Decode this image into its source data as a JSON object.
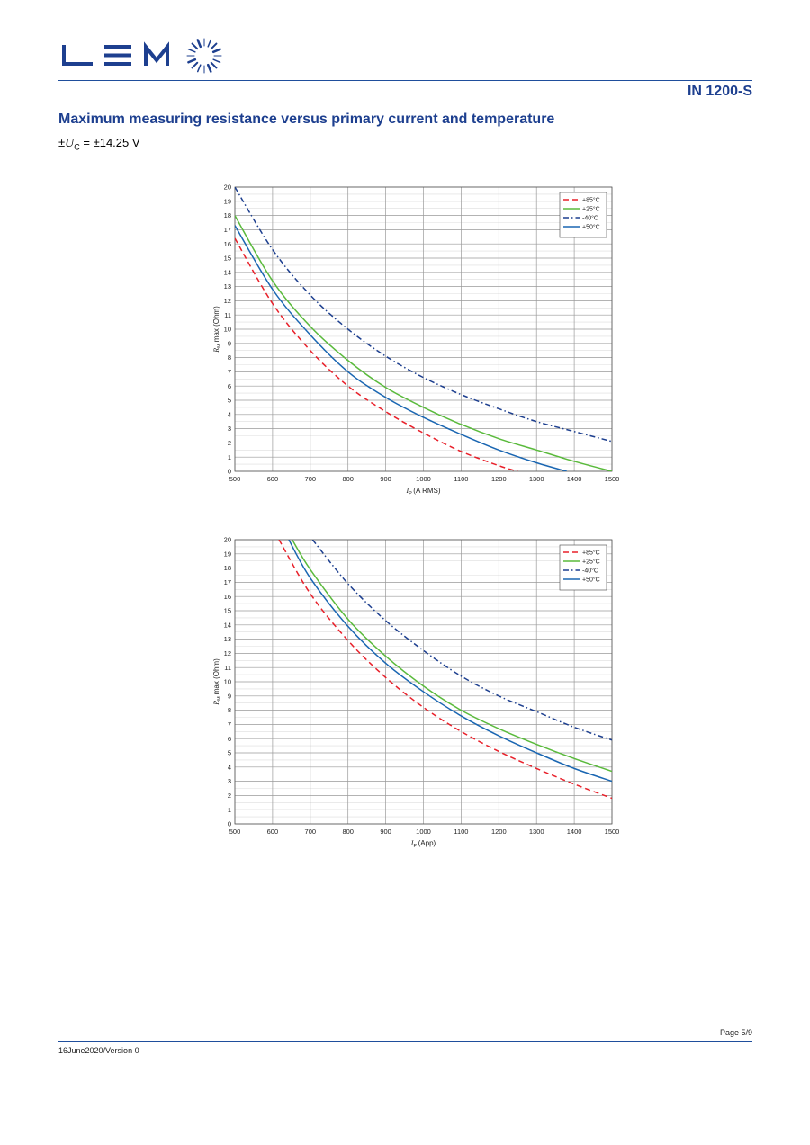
{
  "header": {
    "logo_text": "LEM",
    "product": "IN 1200-S"
  },
  "section": {
    "title": "Maximum measuring resistance versus primary current and temperature",
    "condition_prefix": "±",
    "condition_symbol": "U",
    "condition_subscript": "C",
    "condition_value": " = ±14.25 V"
  },
  "footer": {
    "page": "Page 5/9",
    "version": "16June2020/Version 0"
  },
  "colors": {
    "brand": "#1d3f8f",
    "rule": "#1f4e9c"
  },
  "chart_data": [
    {
      "type": "line",
      "xlabel_symbol": "I",
      "xlabel_sub": "P",
      "xlabel_unit": "(A RMS)",
      "ylabel_symbol": "R",
      "ylabel_sub": "M",
      "ylabel_unit": "max (Ohm)",
      "xlim": [
        500,
        1500
      ],
      "ylim": [
        0,
        20
      ],
      "xticks": [
        500,
        600,
        700,
        800,
        900,
        1000,
        1100,
        1200,
        1300,
        1400,
        1500
      ],
      "yticks": [
        0,
        1,
        2,
        3,
        4,
        5,
        6,
        7,
        8,
        9,
        10,
        11,
        12,
        13,
        14,
        15,
        16,
        17,
        18,
        19,
        20
      ],
      "grid": true,
      "legend_position": "top-right",
      "series": [
        {
          "name": "+85°C",
          "color": "#e8202a",
          "dash": "dashed",
          "x": [
            500,
            600,
            700,
            800,
            900,
            1000,
            1100,
            1200,
            1250
          ],
          "y": [
            16.4,
            11.8,
            8.5,
            6.0,
            4.2,
            2.7,
            1.4,
            0.4,
            0
          ]
        },
        {
          "name": "+25°C",
          "color": "#5aba3c",
          "dash": "solid",
          "x": [
            500,
            600,
            700,
            800,
            900,
            1000,
            1100,
            1200,
            1300,
            1400,
            1500
          ],
          "y": [
            18.0,
            13.4,
            10.2,
            7.8,
            5.9,
            4.5,
            3.3,
            2.3,
            1.5,
            0.7,
            0
          ]
        },
        {
          "name": "-40°C",
          "color": "#1d3f8f",
          "dash": "dashdot",
          "x": [
            500,
            600,
            700,
            800,
            900,
            1000,
            1100,
            1200,
            1300,
            1400,
            1500
          ],
          "y": [
            20.0,
            15.6,
            12.4,
            10.0,
            8.1,
            6.6,
            5.4,
            4.4,
            3.5,
            2.8,
            2.1
          ]
        },
        {
          "name": "+50°C",
          "color": "#1a66b2",
          "dash": "solid",
          "x": [
            500,
            600,
            700,
            800,
            900,
            1000,
            1100,
            1200,
            1300,
            1380
          ],
          "y": [
            17.3,
            12.8,
            9.6,
            7.0,
            5.2,
            3.8,
            2.6,
            1.5,
            0.6,
            0
          ]
        }
      ]
    },
    {
      "type": "line",
      "xlabel_symbol": "I",
      "xlabel_sub": "P",
      "xlabel_unit": "(App)",
      "ylabel_symbol": "R",
      "ylabel_sub": "M",
      "ylabel_unit": "max (Ohm)",
      "xlim": [
        500,
        1500
      ],
      "ylim": [
        0,
        20
      ],
      "xticks": [
        500,
        600,
        700,
        800,
        900,
        1000,
        1100,
        1200,
        1300,
        1400,
        1500
      ],
      "yticks": [
        0,
        1,
        2,
        3,
        4,
        5,
        6,
        7,
        8,
        9,
        10,
        11,
        12,
        13,
        14,
        15,
        16,
        17,
        18,
        19,
        20
      ],
      "grid": true,
      "legend_position": "top-right",
      "series": [
        {
          "name": "+85°C",
          "color": "#e8202a",
          "dash": "dashed",
          "x": [
            617,
            700,
            800,
            900,
            1000,
            1100,
            1200,
            1300,
            1400,
            1500
          ],
          "y": [
            20.0,
            16.2,
            12.9,
            10.3,
            8.2,
            6.5,
            5.1,
            3.9,
            2.8,
            1.8
          ]
        },
        {
          "name": "+25°C",
          "color": "#5aba3c",
          "dash": "solid",
          "x": [
            652,
            700,
            800,
            900,
            1000,
            1100,
            1200,
            1300,
            1400,
            1500
          ],
          "y": [
            20.0,
            17.9,
            14.4,
            11.8,
            9.7,
            8.0,
            6.7,
            5.6,
            4.6,
            3.7
          ]
        },
        {
          "name": "-40°C",
          "color": "#1d3f8f",
          "dash": "dashdot",
          "x": [
            706,
            800,
            900,
            1000,
            1100,
            1200,
            1300,
            1400,
            1500
          ],
          "y": [
            20.0,
            16.9,
            14.3,
            12.2,
            10.4,
            9.0,
            7.9,
            6.8,
            5.9
          ]
        },
        {
          "name": "+50°C",
          "color": "#1a66b2",
          "dash": "solid",
          "x": [
            643,
            700,
            800,
            900,
            1000,
            1100,
            1200,
            1300,
            1400,
            1500
          ],
          "y": [
            20.0,
            17.3,
            13.9,
            11.3,
            9.3,
            7.6,
            6.2,
            5.0,
            3.9,
            3.0
          ]
        }
      ]
    }
  ]
}
